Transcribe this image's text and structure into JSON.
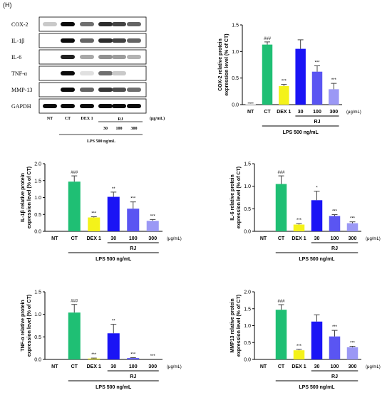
{
  "panel_label": "(H)",
  "western_blot": {
    "bands": [
      "COX-2",
      "IL-1β",
      "IL-6",
      "TNF-α",
      "MMP-13",
      "GAPDH"
    ],
    "lanes": [
      "NT",
      "CT",
      "DEX 1",
      "30",
      "100",
      "300"
    ],
    "units": "(μg/mL)",
    "rj_label": "RJ",
    "lps_label": "LPS 500 ng/mL",
    "intensity": {
      "COX-2": [
        0.15,
        1.0,
        0.55,
        0.85,
        0.75,
        0.6
      ],
      "IL-1β": [
        0.0,
        1.0,
        0.6,
        0.85,
        0.75,
        0.6
      ],
      "IL-6": [
        0.0,
        0.9,
        0.3,
        0.4,
        0.35,
        0.25
      ],
      "TNF-α": [
        0.0,
        1.0,
        0.05,
        0.55,
        0.15,
        0.0
      ],
      "MMP-13": [
        0.0,
        1.0,
        0.6,
        0.8,
        0.7,
        0.55
      ],
      "GAPDH": [
        1.0,
        1.0,
        1.0,
        1.0,
        1.0,
        1.0
      ]
    }
  },
  "chart_data": [
    {
      "type": "bar",
      "ylabel": "COX-2 relative protein expression level (% of CT)",
      "categories": [
        "NT",
        "CT",
        "DEX 1",
        "30",
        "100",
        "300"
      ],
      "values": [
        0.02,
        1.13,
        0.35,
        1.05,
        0.62,
        0.29
      ],
      "errors": [
        0.01,
        0.05,
        0.03,
        0.17,
        0.11,
        0.11
      ],
      "significance": [
        "",
        "###",
        "***",
        "",
        "***",
        "***"
      ],
      "ylim": [
        0,
        1.5
      ],
      "yticks": [
        "0.0",
        "0.5",
        "1.0",
        "1.5"
      ],
      "units": "(μg/mL)",
      "group_label": "RJ",
      "treatment_label": "LPS 500 ng/mL",
      "colors": [
        "#ffffff",
        "#1fbf74",
        "#f4f21a",
        "#1a14f5",
        "#5a55f2",
        "#9b98f5"
      ]
    },
    {
      "type": "bar",
      "ylabel": "IL-1β relative protein expression level (% of CT)",
      "categories": [
        "NT",
        "CT",
        "DEX 1",
        "30",
        "100",
        "300"
      ],
      "values": [
        0.0,
        1.47,
        0.41,
        1.02,
        0.67,
        0.31
      ],
      "errors": [
        0.0,
        0.17,
        0.02,
        0.14,
        0.2,
        0.04
      ],
      "significance": [
        "",
        "###",
        "***",
        "**",
        "***",
        "***"
      ],
      "ylim": [
        0,
        2.0
      ],
      "yticks": [
        "0.0",
        "0.5",
        "1.0",
        "1.5",
        "2.0"
      ],
      "units": "(μg/mL)",
      "group_label": "RJ",
      "treatment_label": "LPS 500 ng/mL",
      "colors": [
        "#ffffff",
        "#1fbf74",
        "#f4f21a",
        "#1a14f5",
        "#5a55f2",
        "#9b98f5"
      ]
    },
    {
      "type": "bar",
      "ylabel": "IL-6 relative protein expression level (% of CT)",
      "categories": [
        "NT",
        "CT",
        "DEX 1",
        "30",
        "100",
        "300"
      ],
      "values": [
        0.0,
        1.05,
        0.15,
        0.69,
        0.34,
        0.18
      ],
      "errors": [
        0.0,
        0.18,
        0.02,
        0.2,
        0.03,
        0.03
      ],
      "significance": [
        "",
        "###",
        "***",
        "*",
        "***",
        "***"
      ],
      "ylim": [
        0,
        1.5
      ],
      "yticks": [
        "0.0",
        "0.5",
        "1.0",
        "1.5"
      ],
      "units": "(μg/mL)",
      "group_label": "RJ",
      "treatment_label": "LPS 500 ng/mL",
      "colors": [
        "#ffffff",
        "#1fbf74",
        "#f4f21a",
        "#1a14f5",
        "#5a55f2",
        "#9b98f5"
      ]
    },
    {
      "type": "bar",
      "ylabel": "TNF-α relative protein expression level (% of CT)",
      "categories": [
        "NT",
        "CT",
        "DEX 1",
        "30",
        "100",
        "300"
      ],
      "values": [
        0.0,
        1.04,
        0.02,
        0.58,
        0.03,
        0.0
      ],
      "errors": [
        0.0,
        0.18,
        0.01,
        0.2,
        0.01,
        0.0
      ],
      "significance": [
        "",
        "###",
        "***",
        "**",
        "***",
        "***"
      ],
      "ylim": [
        0,
        1.5
      ],
      "yticks": [
        "0.0",
        "0.5",
        "1.0",
        "1.5"
      ],
      "units": "(μg/mL)",
      "group_label": "RJ",
      "treatment_label": "LPS 500 ng/mL",
      "colors": [
        "#ffffff",
        "#1fbf74",
        "#f4f21a",
        "#1a14f5",
        "#5a55f2",
        "#9b98f5"
      ]
    },
    {
      "type": "bar",
      "ylabel": "MMP13 relative protein expression level (% of CT)",
      "categories": [
        "NT",
        "CT",
        "DEX 1",
        "30",
        "100",
        "300"
      ],
      "values": [
        0.0,
        1.47,
        0.27,
        1.12,
        0.68,
        0.36
      ],
      "errors": [
        0.0,
        0.15,
        0.03,
        0.2,
        0.18,
        0.03
      ],
      "significance": [
        "",
        "###",
        "***",
        "",
        "***",
        "***"
      ],
      "ylim": [
        0,
        2.0
      ],
      "yticks": [
        "0.0",
        "0.5",
        "1.0",
        "1.5",
        "2.0"
      ],
      "units": "(μg/mL)",
      "group_label": "RJ",
      "treatment_label": "LPS 500 ng/mL",
      "colors": [
        "#ffffff",
        "#1fbf74",
        "#f4f21a",
        "#1a14f5",
        "#5a55f2",
        "#9b98f5"
      ]
    }
  ]
}
